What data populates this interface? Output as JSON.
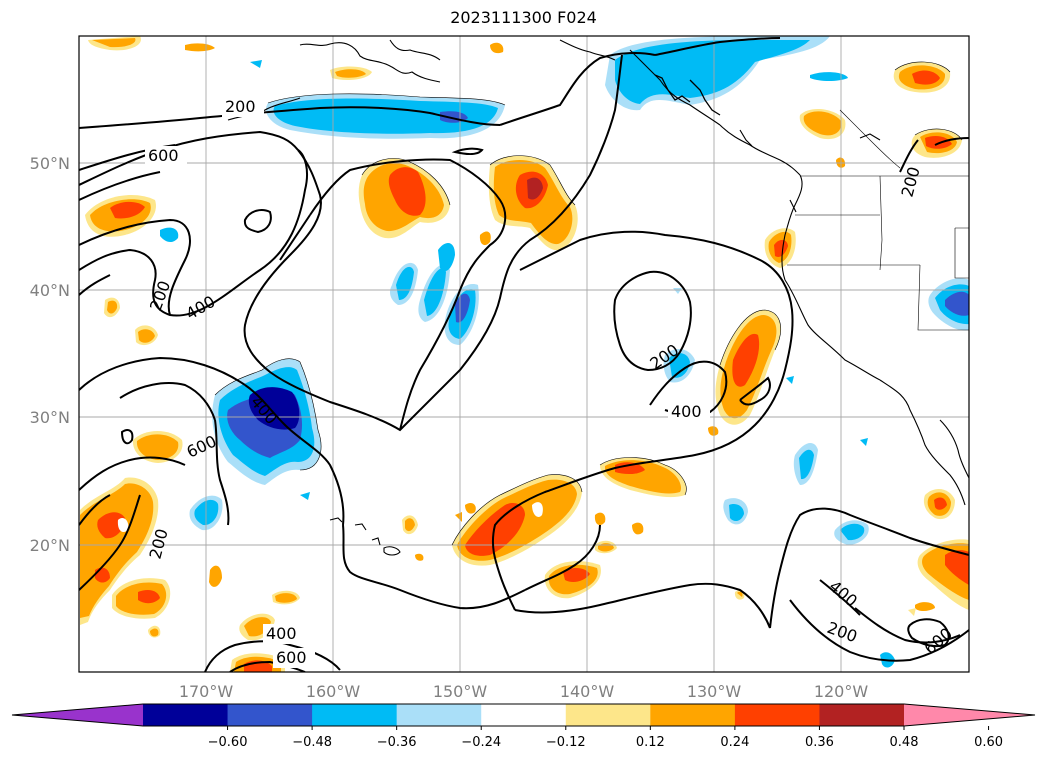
{
  "title": "2023111300 F024",
  "lat_labels": [
    "50°N",
    "40°N",
    "30°N",
    "20°N"
  ],
  "lon_labels": [
    "170°W",
    "160°W",
    "150°W",
    "140°W",
    "130°W",
    "120°W"
  ],
  "contour_labels": [
    "200",
    "600",
    "200",
    "400",
    "400",
    "600",
    "200",
    "200",
    "400",
    "200",
    "400",
    "600",
    "400",
    "600",
    "200",
    "600",
    "200"
  ],
  "colorbar": {
    "ticks": [
      "−0.60",
      "−0.48",
      "−0.36",
      "−0.24",
      "−0.12",
      "0.12",
      "0.24",
      "0.36",
      "0.48",
      "0.60"
    ],
    "colors": [
      "#9933cc",
      "#000099",
      "#3355cc",
      "#00bbf5",
      "#aadff8",
      "#ffffff",
      "#fde68a",
      "#ffa500",
      "#ff4000",
      "#b22222",
      "#ff88aa"
    ]
  },
  "fill_colors": {
    "neg_light": "#aadff8",
    "neg_mid": "#00bbf5",
    "neg_strong": "#3355cc",
    "neg_max": "#000099",
    "pos_light": "#fde68a",
    "pos_mid": "#ffa500",
    "pos_strong": "#ff4000",
    "pos_max": "#b22222"
  }
}
